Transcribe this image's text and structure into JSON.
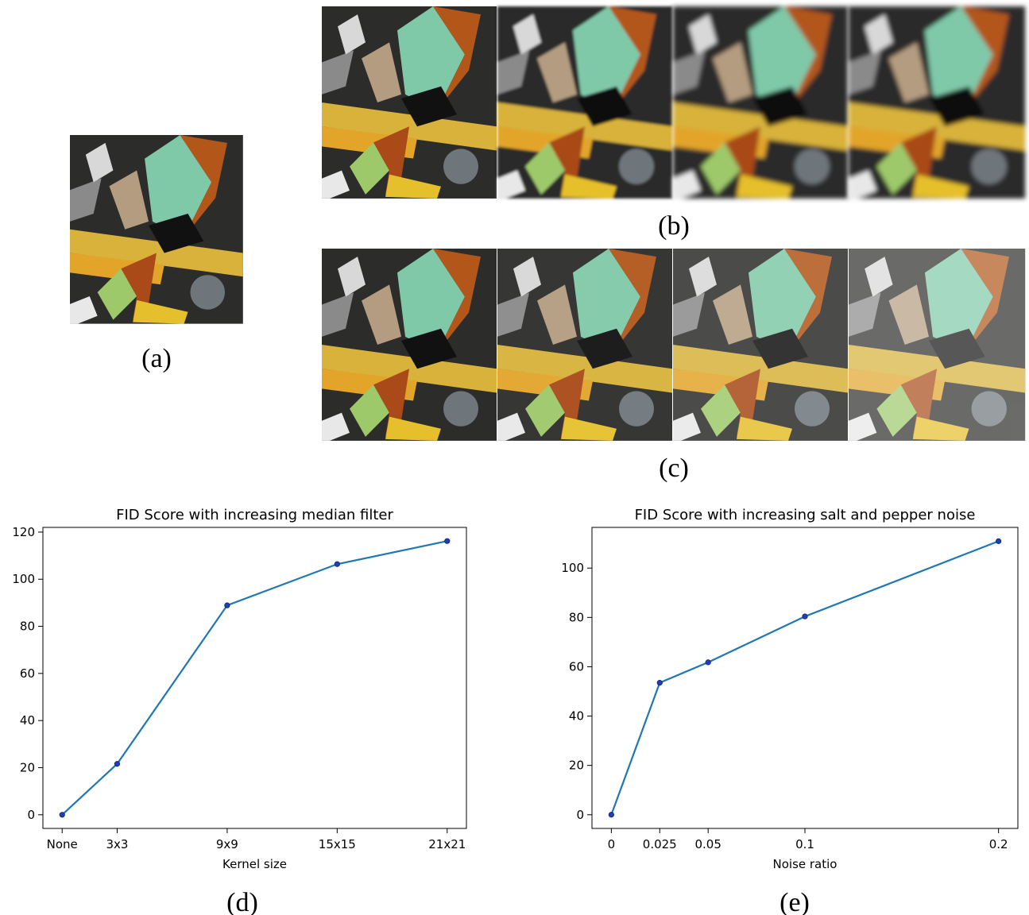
{
  "captions": {
    "a": "(a)",
    "b": "(b)",
    "c": "(c)",
    "d": "(d)",
    "e": "(e)"
  },
  "chart_data": [
    {
      "type": "line",
      "title": "FID Score with increasing median filter",
      "x_label": "Kernel size",
      "x": [
        0,
        3,
        9,
        15,
        21
      ],
      "values": [
        0,
        21.6,
        88.9,
        106.4,
        116.2
      ],
      "color": "#1f77b4",
      "marker_color": "#1f3fb4",
      "xlim": [
        -1.05,
        22.05
      ],
      "ylim": [
        -5.8,
        122
      ],
      "xticks": [
        {
          "value": 0,
          "label": "None"
        },
        {
          "value": 3,
          "label": "3x3"
        },
        {
          "value": 9,
          "label": "9x9"
        },
        {
          "value": 15,
          "label": "15x15"
        },
        {
          "value": 21,
          "label": "21x21"
        }
      ],
      "yticks": [
        0,
        20,
        40,
        60,
        80,
        100,
        120
      ],
      "grid": false
    },
    {
      "type": "line",
      "title": "FID Score with increasing salt and pepper noise",
      "x_label": "Noise ratio",
      "x": [
        0,
        0.025,
        0.05,
        0.1,
        0.2
      ],
      "values": [
        0,
        53.5,
        61.8,
        80.4,
        110.9
      ],
      "color": "#1f77b4",
      "marker_color": "#1f3fb4",
      "xlim": [
        -0.01,
        0.21
      ],
      "ylim": [
        -5.55,
        116.5
      ],
      "xticks": [
        0,
        0.025,
        0.05,
        0.1,
        0.2
      ],
      "yticks": [
        0,
        20,
        40,
        60,
        80,
        100
      ],
      "grid": false
    }
  ]
}
